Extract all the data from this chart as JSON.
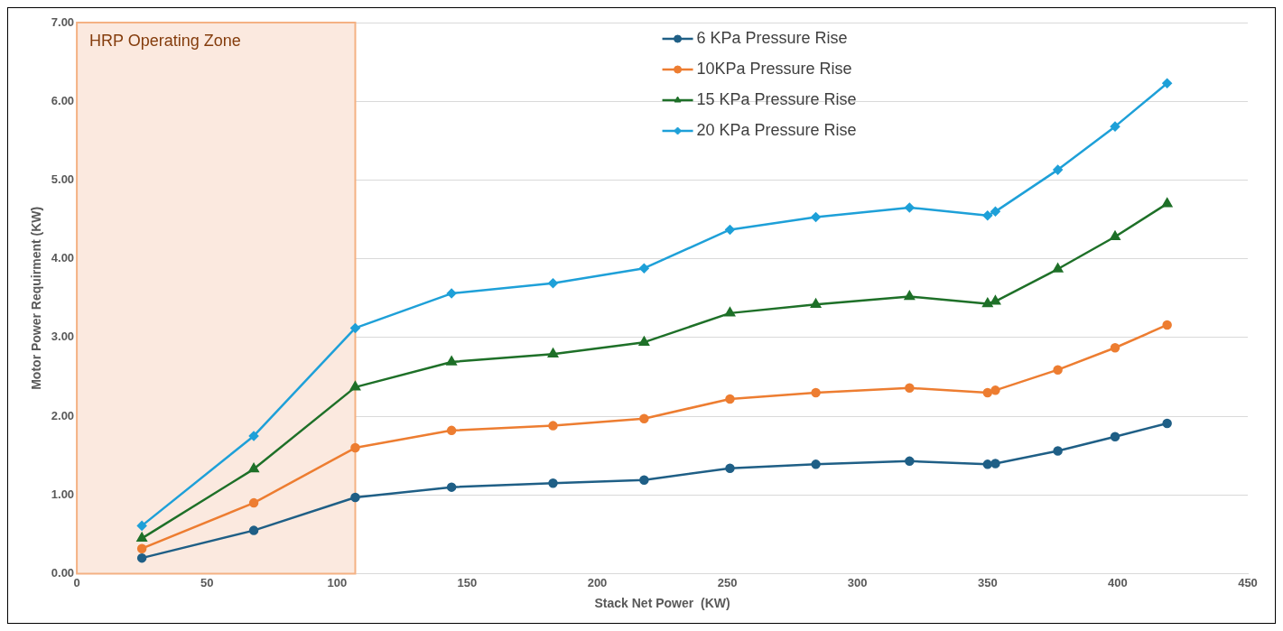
{
  "chart_data": {
    "type": "line",
    "xlabel": "Stack Net Power  (KW)",
    "ylabel": "Motor Power Requirment (KW)",
    "x": [
      25,
      68,
      107,
      144,
      183,
      218,
      251,
      284,
      320,
      350,
      353,
      377,
      399,
      419
    ],
    "series": [
      {
        "name": "6 KPa Pressure Rise",
        "color": "#1f5f86",
        "marker": "circle",
        "values": [
          0.2,
          0.55,
          0.97,
          1.1,
          1.15,
          1.19,
          1.34,
          1.39,
          1.43,
          1.39,
          1.4,
          1.56,
          1.74,
          1.91
        ]
      },
      {
        "name": "10KPa Pressure Rise",
        "color": "#ed7d31",
        "marker": "circle",
        "values": [
          0.32,
          0.9,
          1.6,
          1.82,
          1.88,
          1.97,
          2.22,
          2.3,
          2.36,
          2.3,
          2.33,
          2.59,
          2.87,
          3.16
        ]
      },
      {
        "name": "15 KPa Pressure Rise",
        "color": "#1e7028",
        "marker": "triangle",
        "values": [
          0.45,
          1.33,
          2.37,
          2.69,
          2.79,
          2.94,
          3.31,
          3.42,
          3.52,
          3.43,
          3.46,
          3.87,
          4.28,
          4.7
        ]
      },
      {
        "name": "20 KPa Pressure Rise",
        "color": "#1ea0d8",
        "marker": "diamond",
        "values": [
          0.61,
          1.75,
          3.12,
          3.56,
          3.69,
          3.88,
          4.37,
          4.53,
          4.65,
          4.55,
          4.6,
          5.13,
          5.68,
          6.23
        ]
      }
    ],
    "xlim": [
      0,
      450
    ],
    "xticks": [
      0,
      50,
      100,
      150,
      200,
      250,
      300,
      350,
      400,
      450
    ],
    "ylim": [
      0,
      7
    ],
    "yticks": [
      {
        "value": 0,
        "label": "0.00"
      },
      {
        "value": 1,
        "label": "1.00"
      },
      {
        "value": 2,
        "label": "2.00"
      },
      {
        "value": 3,
        "label": "3.00"
      },
      {
        "value": 4,
        "label": "4.00"
      },
      {
        "value": 5,
        "label": "5.00"
      },
      {
        "value": 6,
        "label": "6.00"
      },
      {
        "value": 7,
        "label": "7.00"
      }
    ],
    "grid": "y",
    "legend": "top",
    "line_style": "solid",
    "bands": [
      {
        "axis": "x",
        "from": 0,
        "to": 107,
        "label": "HRP Operating Zone",
        "color": "#fbe9df"
      }
    ]
  }
}
